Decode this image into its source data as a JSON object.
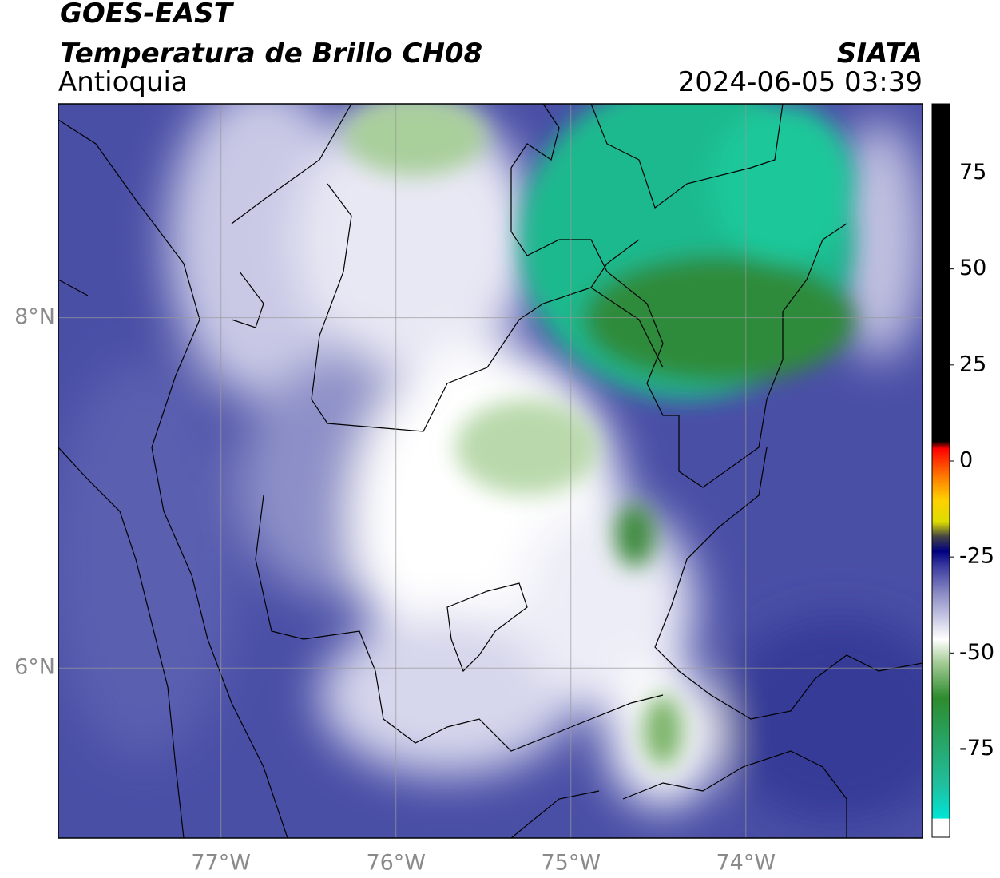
{
  "header": {
    "title": "GOES-EAST",
    "subtitle": "Temperatura de Brillo CH08",
    "region": "Antioquia",
    "source": "SIATA",
    "datetime": "2024-06-05 03:39"
  },
  "map": {
    "xlim": [
      -77.93,
      -72.99
    ],
    "ylim": [
      5.03,
      9.22
    ],
    "xticks": [
      {
        "value": -77,
        "label": "77°W"
      },
      {
        "value": -76,
        "label": "76°W"
      },
      {
        "value": -75,
        "label": "75°W"
      },
      {
        "value": -74,
        "label": "74°W"
      }
    ],
    "yticks": [
      {
        "value": 8,
        "label": "8°N"
      },
      {
        "value": 6,
        "label": "6°N"
      }
    ],
    "grid": true
  },
  "colorbar": {
    "lim": [
      -98,
      93
    ],
    "ticks": [
      75,
      50,
      25,
      0,
      -25,
      -50,
      -75
    ]
  }
}
